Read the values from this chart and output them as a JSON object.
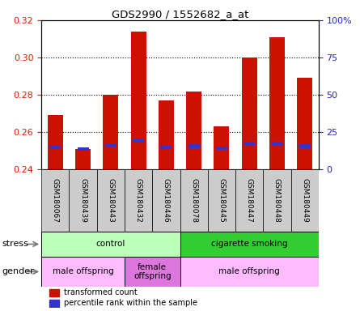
{
  "title": "GDS2990 / 1552682_a_at",
  "samples": [
    "GSM180067",
    "GSM180439",
    "GSM180443",
    "GSM180432",
    "GSM180446",
    "GSM180078",
    "GSM180445",
    "GSM180447",
    "GSM180448",
    "GSM180449"
  ],
  "transformed_count": [
    0.269,
    0.251,
    0.28,
    0.314,
    0.277,
    0.282,
    0.263,
    0.3,
    0.311,
    0.289
  ],
  "percentile_rank": [
    0.252,
    0.251,
    0.253,
    0.2555,
    0.252,
    0.2525,
    0.2515,
    0.254,
    0.254,
    0.2525
  ],
  "ylim_left": [
    0.24,
    0.32
  ],
  "ylim_right": [
    0,
    100
  ],
  "yticks_left": [
    0.24,
    0.26,
    0.28,
    0.3,
    0.32
  ],
  "yticks_right": [
    0,
    25,
    50,
    75,
    100
  ],
  "ytick_labels_right": [
    "0",
    "25",
    "50",
    "75",
    "100%"
  ],
  "bar_color": "#cc1100",
  "percentile_color": "#3333cc",
  "bar_bottom": 0.24,
  "stress_groups": [
    {
      "label": "control",
      "start": 0,
      "end": 5,
      "color": "#bbffbb"
    },
    {
      "label": "cigarette smoking",
      "start": 5,
      "end": 10,
      "color": "#33cc33"
    }
  ],
  "gender_groups": [
    {
      "label": "male offspring",
      "start": 0,
      "end": 3,
      "color": "#ffbbff"
    },
    {
      "label": "female\noffspring",
      "start": 3,
      "end": 5,
      "color": "#dd77dd"
    },
    {
      "label": "male offspring",
      "start": 5,
      "end": 10,
      "color": "#ffbbff"
    }
  ],
  "stress_label": "stress",
  "gender_label": "gender",
  "legend_red_label": "transformed count",
  "legend_blue_label": "percentile rank within the sample",
  "background_color": "#ffffff",
  "tick_label_color_left": "#cc2200",
  "tick_label_color_right": "#2222cc",
  "xticklabel_bg": "#cccccc",
  "chart_bg": "#ffffff"
}
